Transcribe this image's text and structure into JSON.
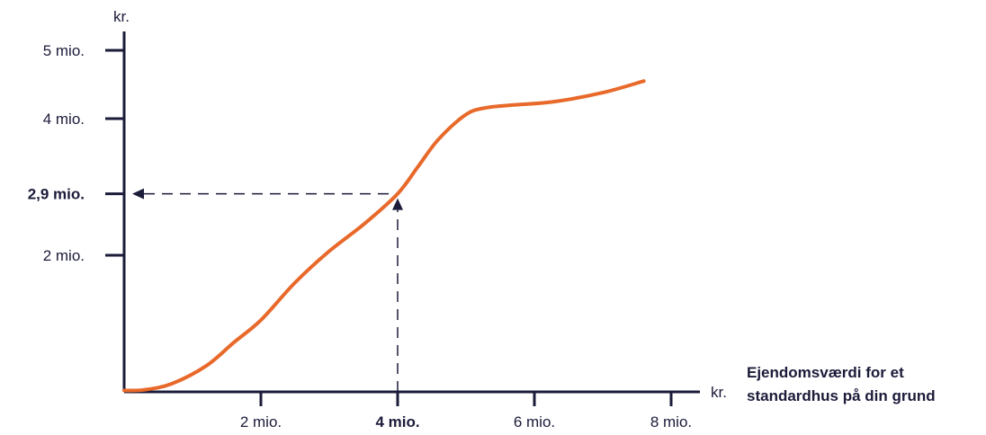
{
  "chart_data": {
    "type": "line",
    "x_unit": "kr.",
    "y_unit": "kr.",
    "xlabel": "Ejendomsværdi for et standardhus på din grund",
    "xlabel_lines": [
      "Ejendomsværdi for et",
      "standardhus på din grund"
    ],
    "xlim": [
      0,
      8.3
    ],
    "ylim": [
      0,
      5.4
    ],
    "x_ticks": [
      {
        "value": 2,
        "label": "2 mio.",
        "bold": false
      },
      {
        "value": 4,
        "label": "4 mio.",
        "bold": true
      },
      {
        "value": 6,
        "label": "6 mio.",
        "bold": false
      },
      {
        "value": 8,
        "label": "8 mio.",
        "bold": false
      }
    ],
    "y_ticks": [
      {
        "value": 2,
        "label": "2 mio.",
        "bold": false
      },
      {
        "value": 2.9,
        "label": "2,9 mio.",
        "bold": true
      },
      {
        "value": 4,
        "label": "4 mio.",
        "bold": false
      },
      {
        "value": 5,
        "label": "5 mio.",
        "bold": false
      }
    ],
    "series": [
      {
        "color": "#e8692a",
        "x": [
          0,
          0.3,
          0.7,
          1.2,
          1.6,
          2.0,
          2.5,
          3.0,
          3.5,
          4.0,
          4.3,
          4.6,
          5.0,
          5.3,
          5.7,
          6.3,
          7.0,
          7.6
        ],
        "y": [
          0.02,
          0.03,
          0.12,
          0.38,
          0.72,
          1.05,
          1.6,
          2.06,
          2.45,
          2.9,
          3.3,
          3.7,
          4.06,
          4.16,
          4.2,
          4.25,
          4.38,
          4.55
        ]
      }
    ],
    "annotation": {
      "x": 4,
      "y": 2.9,
      "style": "dashed-arrows"
    },
    "grid": false,
    "legend": "none"
  },
  "colors": {
    "axis": "#1b1b3a",
    "curve": "#e8692a"
  }
}
